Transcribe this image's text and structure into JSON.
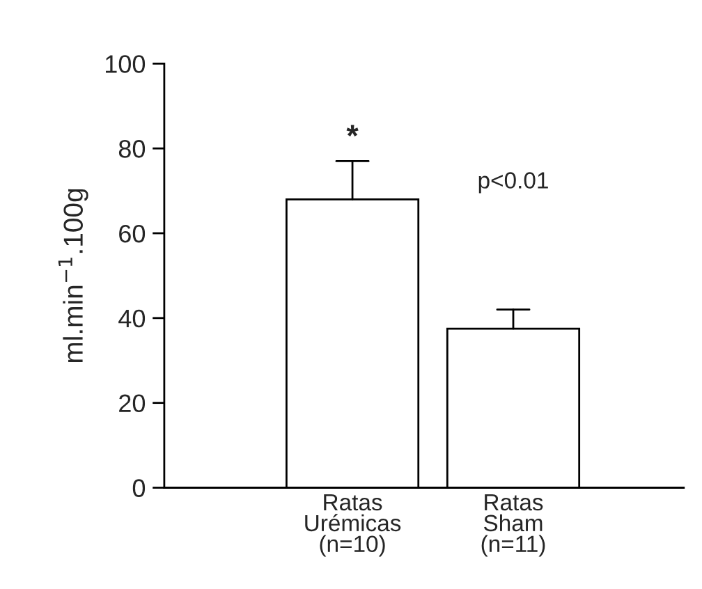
{
  "chart_data": {
    "type": "bar",
    "ylabel": "ml.min$^{−1}$.100g",
    "categories": [
      "Ratas\nUrémicas\n(n=10)",
      "Ratas\nSham\n(n=11)"
    ],
    "values": [
      68,
      37.5
    ],
    "color": "#ffffff",
    "errors": [
      [
        68,
        77
      ],
      [
        37.5,
        42
      ]
    ],
    "ylim": [
      0,
      100
    ],
    "yticks": [
      0,
      20,
      40,
      60,
      80,
      100
    ],
    "grid": false,
    "legend": false,
    "annotations": [
      {
        "text": "*",
        "x": "Ratas\nUrémicas\n(n=10)",
        "y": 77
      },
      "p<0.01"
    ]
  }
}
